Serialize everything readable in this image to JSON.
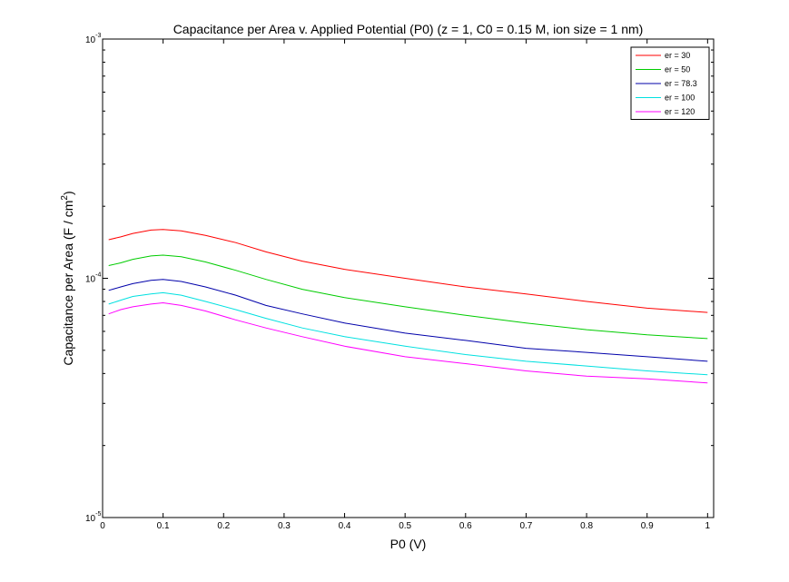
{
  "chart_data": {
    "type": "line",
    "title": "Capacitance per Area v. Applied Potential (P0) (z = 1, C0 = 0.15 M, ion size = 1 nm)",
    "xlabel": "P0 (V)",
    "ylabel": "Capacitance per Area (F / cm²)",
    "ylabel_main": "Capacitance per Area (F / cm",
    "ylabel_sup": "2",
    "ylabel_close": ")",
    "xlim": [
      0,
      1.01
    ],
    "ylim": [
      1e-05,
      0.001
    ],
    "yscale": "log",
    "x_ticks": [
      "0",
      "0.1",
      "0.2",
      "0.3",
      "0.4",
      "0.5",
      "0.6",
      "0.7",
      "0.8",
      "0.9",
      "1"
    ],
    "y_ticks": [
      {
        "base": "10",
        "exp": "-5"
      },
      {
        "base": "10",
        "exp": "-4"
      },
      {
        "base": "10",
        "exp": "-3"
      }
    ],
    "grid": false,
    "legend_position": "top-right",
    "x": [
      0.01,
      0.03,
      0.05,
      0.08,
      0.1,
      0.13,
      0.17,
      0.22,
      0.27,
      0.33,
      0.4,
      0.5,
      0.6,
      0.7,
      0.8,
      0.9,
      1.0
    ],
    "series": [
      {
        "name": "er = 30",
        "color": "#ff0000",
        "values": [
          0.000145,
          0.000149,
          0.000154,
          0.000159,
          0.00016,
          0.000158,
          0.000151,
          0.000141,
          0.000129,
          0.000118,
          0.000109,
          0.0001,
          9.2e-05,
          8.6e-05,
          8e-05,
          7.5e-05,
          7.2e-05
        ]
      },
      {
        "name": "er = 50",
        "color": "#00cc00",
        "values": [
          0.000113,
          0.000116,
          0.00012,
          0.000124,
          0.000125,
          0.000123,
          0.000117,
          0.000108,
          9.9e-05,
          9e-05,
          8.3e-05,
          7.6e-05,
          7e-05,
          6.5e-05,
          6.1e-05,
          5.8e-05,
          5.6e-05
        ]
      },
      {
        "name": "er = 78.3",
        "color": "#0000aa",
        "values": [
          8.9e-05,
          9.2e-05,
          9.5e-05,
          9.8e-05,
          9.9e-05,
          9.7e-05,
          9.2e-05,
          8.5e-05,
          7.7e-05,
          7.1e-05,
          6.5e-05,
          5.9e-05,
          5.5e-05,
          5.1e-05,
          4.9e-05,
          4.7e-05,
          4.5e-05
        ]
      },
      {
        "name": "er = 100",
        "color": "#00e0e0",
        "values": [
          7.8e-05,
          8.1e-05,
          8.4e-05,
          8.6e-05,
          8.7e-05,
          8.5e-05,
          8e-05,
          7.4e-05,
          6.8e-05,
          6.2e-05,
          5.7e-05,
          5.2e-05,
          4.8e-05,
          4.5e-05,
          4.3e-05,
          4.1e-05,
          3.95e-05
        ]
      },
      {
        "name": "er = 120",
        "color": "#ff00ff",
        "values": [
          7.1e-05,
          7.4e-05,
          7.6e-05,
          7.8e-05,
          7.9e-05,
          7.7e-05,
          7.3e-05,
          6.7e-05,
          6.2e-05,
          5.7e-05,
          5.2e-05,
          4.7e-05,
          4.4e-05,
          4.1e-05,
          3.9e-05,
          3.8e-05,
          3.65e-05
        ]
      }
    ]
  }
}
